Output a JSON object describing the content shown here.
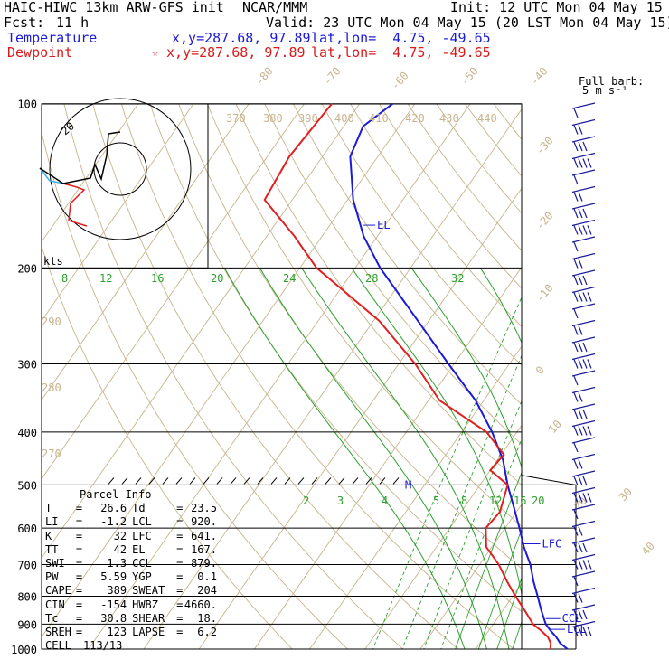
{
  "header": {
    "title": "HAIC-HIWC 13km ARW-GFS init",
    "org": "NCAR/MMM",
    "init": "Init: 12 UTC Mon 04 May 15",
    "fcst_label": "Fcst:",
    "fcst_value": "11 h",
    "valid": "Valid: 23 UTC Mon 04 May 15 (20 LST Mon 04 May 15)",
    "temp_label": "Temperature",
    "temp_xy": "x,y=287.68, 97.89",
    "temp_latlon": "lat,lon=  4.75, -49.65",
    "dew_label": "Dewpoint",
    "dew_star": "☆",
    "dew_xy": "x,y=287.68, 97.89",
    "dew_latlon": "lat,lon=  4.75, -49.65"
  },
  "colors": {
    "temperature": "#1a1ad8",
    "dewpoint": "#e02020",
    "mixing_ratio": "#2ca02c",
    "theta": "#c8b48c",
    "isotherm": "#c8b48c",
    "isobar": "#000000"
  },
  "barb_legend": {
    "line1": "Full barb:",
    "line2": "5 m s⁻¹"
  },
  "hodograph": {
    "units": "kts",
    "ring_label": "20"
  },
  "curve_labels": {
    "el": "EL",
    "lfc": "LFC",
    "ccl": "CCL",
    "lcl": "LCL",
    "m": "M"
  },
  "parcel": {
    "title": "Parcel Info",
    "rows": [
      [
        "T",
        "26.6",
        "Td",
        "23.5"
      ],
      [
        "LI",
        "-1.2",
        "LCL",
        "920."
      ],
      [
        "K",
        "32",
        "LFC",
        "641."
      ],
      [
        "TT",
        "42",
        "EL",
        "167."
      ],
      [
        "SWI",
        "1.3",
        "CCL",
        "879."
      ],
      [
        "PW",
        "5.59",
        "YGP",
        "0.1"
      ],
      [
        "CAPE",
        "389",
        "SWEAT",
        "204"
      ],
      [
        "CIN",
        "-154",
        "HWBZ",
        "4660."
      ],
      [
        "Tc",
        "30.8",
        "SHEAR",
        "18."
      ],
      [
        "SREH",
        "123",
        "LAPSE",
        "6.2"
      ]
    ],
    "cell_label": "CELL",
    "cell_value": "113/13"
  },
  "chart_data": {
    "type": "line",
    "y_axis": {
      "label": "pressure (hPa)",
      "scale": "log",
      "ticks": [
        100,
        200,
        300,
        400,
        500,
        600,
        700,
        800,
        900,
        1000
      ]
    },
    "isotherm_labels": [
      "-80",
      "-70",
      "-60",
      "-50",
      "-40",
      "-30",
      "-20",
      "-10",
      "0",
      "10",
      "20",
      "30",
      "40"
    ],
    "theta_labels": [
      "370",
      "380",
      "390",
      "400",
      "410",
      "420",
      "430",
      "440",
      "290",
      "280",
      "270"
    ],
    "mixing_ratio_labels_upper": [
      "8",
      "12",
      "16",
      "20",
      "24",
      "28",
      "32"
    ],
    "mixing_ratio_labels_lower": [
      "2",
      "3",
      "4",
      "5",
      "8",
      "12",
      "16",
      "20",
      "24"
    ],
    "series": [
      {
        "name": "Temperature",
        "points": [
          [
            1000,
            26.6
          ],
          [
            975,
            24.5
          ],
          [
            950,
            23.0
          ],
          [
            925,
            21.2
          ],
          [
            900,
            19.5
          ],
          [
            850,
            17.0
          ],
          [
            800,
            14.5
          ],
          [
            750,
            11.8
          ],
          [
            700,
            9.2
          ],
          [
            650,
            5.8
          ],
          [
            600,
            2.6
          ],
          [
            550,
            -1.0
          ],
          [
            500,
            -5.0
          ],
          [
            450,
            -9.0
          ],
          [
            400,
            -14.5
          ],
          [
            350,
            -21.5
          ],
          [
            300,
            -31.0
          ],
          [
            250,
            -42.0
          ],
          [
            200,
            -55.5
          ],
          [
            175,
            -62.5
          ],
          [
            150,
            -69.0
          ],
          [
            125,
            -75.0
          ],
          [
            110,
            -76.5
          ],
          [
            100,
            -74.0
          ]
        ]
      },
      {
        "name": "Dewpoint",
        "points": [
          [
            1000,
            23.5
          ],
          [
            975,
            22.8
          ],
          [
            950,
            21.5
          ],
          [
            925,
            19.5
          ],
          [
            900,
            17.2
          ],
          [
            850,
            14.0
          ],
          [
            800,
            10.5
          ],
          [
            750,
            7.0
          ],
          [
            700,
            3.5
          ],
          [
            650,
            -1.0
          ],
          [
            600,
            -3.5
          ],
          [
            560,
            -3.0
          ],
          [
            500,
            -5.0
          ],
          [
            470,
            -10.0
          ],
          [
            440,
            -9.5
          ],
          [
            400,
            -15.5
          ],
          [
            350,
            -28.0
          ],
          [
            300,
            -37.0
          ],
          [
            250,
            -49.0
          ],
          [
            200,
            -67.0
          ],
          [
            175,
            -75.0
          ],
          [
            150,
            -85.0
          ],
          [
            125,
            -86.0
          ],
          [
            100,
            -85.0
          ]
        ]
      }
    ],
    "wind_barbs_units": "m s-1"
  }
}
